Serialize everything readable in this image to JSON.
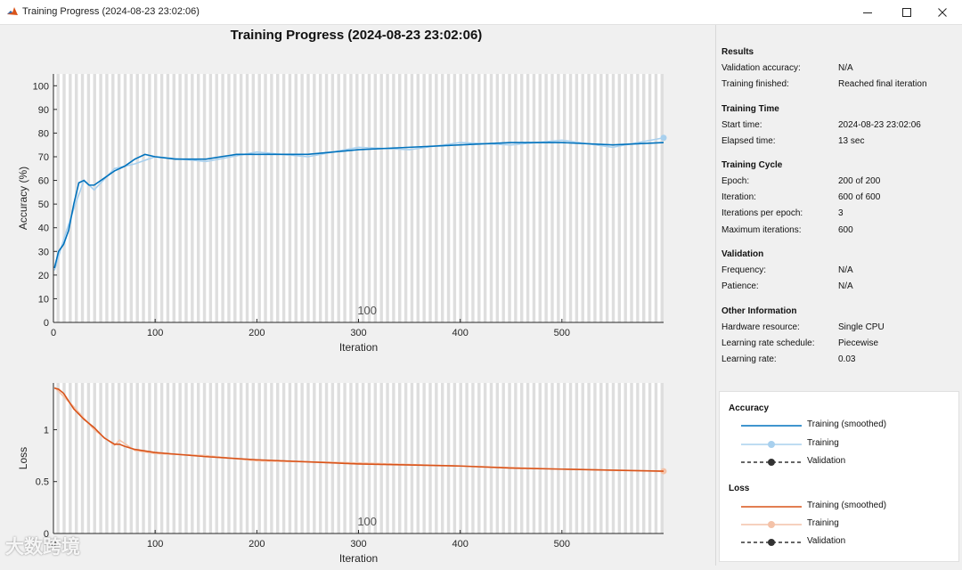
{
  "window": {
    "title": "Training Progress (2024-08-23 23:02:06)",
    "controls": {
      "minimize": "minimize-icon",
      "maximize": "maximize-icon",
      "close": "close-icon"
    }
  },
  "plot_title": "Training Progress (2024-08-23 23:02:06)",
  "colors": {
    "accuracy_smoothed": "#0072bd",
    "accuracy_raw": "#a8d0ee",
    "loss_smoothed": "#d95319",
    "loss_raw": "#f4c2a8",
    "epoch_band": "#dedede"
  },
  "chart_data": [
    {
      "type": "line",
      "name": "accuracy",
      "xlabel": "Iteration",
      "ylabel": "Accuracy (%)",
      "xlim": [
        0,
        600
      ],
      "ylim": [
        0,
        105
      ],
      "xticks": [
        0,
        100,
        200,
        300,
        400,
        500
      ],
      "yticks": [
        0,
        10,
        20,
        30,
        40,
        50,
        60,
        70,
        80,
        90,
        100
      ],
      "annotation": "100",
      "series": [
        {
          "name": "Training (smoothed)",
          "x": [
            1,
            5,
            10,
            15,
            20,
            25,
            30,
            35,
            40,
            50,
            60,
            70,
            80,
            90,
            100,
            120,
            150,
            180,
            200,
            250,
            300,
            350,
            400,
            450,
            500,
            550,
            600
          ],
          "values": [
            23,
            30,
            33,
            39,
            50,
            59,
            60,
            58,
            58,
            61,
            64,
            66,
            69,
            71,
            70,
            69,
            69,
            71,
            71,
            71,
            73,
            74,
            75,
            76,
            76,
            75,
            76
          ]
        },
        {
          "name": "Training",
          "x": [
            1,
            10,
            20,
            30,
            40,
            60,
            80,
            100,
            150,
            200,
            250,
            300,
            350,
            400,
            450,
            500,
            550,
            600
          ],
          "values": [
            22,
            35,
            48,
            60,
            56,
            65,
            67,
            70,
            68,
            72,
            70,
            74,
            73,
            76,
            75,
            77,
            74,
            78
          ]
        }
      ]
    },
    {
      "type": "line",
      "name": "loss",
      "xlabel": "Iteration",
      "ylabel": "Loss",
      "xlim": [
        0,
        600
      ],
      "ylim": [
        0,
        1.45
      ],
      "xticks": [
        0,
        100,
        200,
        300,
        400,
        500
      ],
      "yticks": [
        0,
        0.5,
        1
      ],
      "yticklabels": [
        "0",
        "0.5",
        "1"
      ],
      "annotation": "100",
      "series": [
        {
          "name": "Training (smoothed)",
          "x": [
            1,
            5,
            10,
            20,
            30,
            40,
            50,
            60,
            65,
            70,
            80,
            100,
            150,
            200,
            250,
            300,
            350,
            400,
            450,
            500,
            550,
            600
          ],
          "values": [
            1.4,
            1.39,
            1.35,
            1.2,
            1.1,
            1.02,
            0.92,
            0.86,
            0.86,
            0.84,
            0.81,
            0.78,
            0.74,
            0.71,
            0.69,
            0.67,
            0.66,
            0.65,
            0.63,
            0.62,
            0.61,
            0.6
          ]
        },
        {
          "name": "Training",
          "x": [
            1,
            20,
            40,
            60,
            65,
            80,
            100,
            150,
            200,
            300,
            400,
            500,
            600
          ],
          "values": [
            1.41,
            1.22,
            1.0,
            0.85,
            0.9,
            0.8,
            0.77,
            0.75,
            0.7,
            0.68,
            0.65,
            0.62,
            0.6
          ]
        }
      ]
    }
  ],
  "info": {
    "results": {
      "title": "Results",
      "rows": [
        {
          "key": "Validation accuracy:",
          "value": "N/A"
        },
        {
          "key": "Training finished:",
          "value": "Reached final iteration"
        }
      ]
    },
    "time": {
      "title": "Training Time",
      "rows": [
        {
          "key": "Start time:",
          "value": "2024-08-23 23:02:06"
        },
        {
          "key": "Elapsed time:",
          "value": "13 sec"
        }
      ]
    },
    "cycle": {
      "title": "Training Cycle",
      "rows": [
        {
          "key": "Epoch:",
          "value": "200 of 200"
        },
        {
          "key": "Iteration:",
          "value": "600 of 600"
        },
        {
          "key": "Iterations per epoch:",
          "value": "3"
        },
        {
          "key": "Maximum iterations:",
          "value": "600"
        }
      ]
    },
    "validation": {
      "title": "Validation",
      "rows": [
        {
          "key": "Frequency:",
          "value": "N/A"
        },
        {
          "key": "Patience:",
          "value": "N/A"
        }
      ]
    },
    "other": {
      "title": "Other Information",
      "rows": [
        {
          "key": "Hardware resource:",
          "value": "Single CPU"
        },
        {
          "key": "Learning rate schedule:",
          "value": "Piecewise"
        },
        {
          "key": "Learning rate:",
          "value": "0.03"
        }
      ]
    }
  },
  "legend": {
    "accuracy": {
      "title": "Accuracy",
      "items": [
        "Training (smoothed)",
        "Training",
        "Validation"
      ]
    },
    "loss": {
      "title": "Loss",
      "items": [
        "Training (smoothed)",
        "Training",
        "Validation"
      ]
    }
  },
  "watermark": "大数跨境"
}
